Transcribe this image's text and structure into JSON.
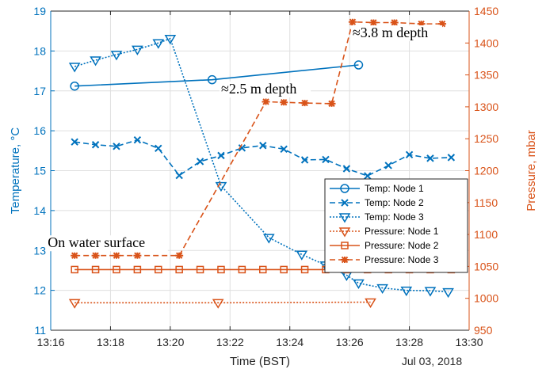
{
  "chart_data": {
    "type": "line",
    "xlabel": "Time (BST)",
    "x_note": "Jul 03, 2018",
    "x_ticks": [
      "13:16",
      "13:18",
      "13:20",
      "13:22",
      "13:24",
      "13:26",
      "13:28",
      "13:30"
    ],
    "xlim_minutes": [
      16,
      30
    ],
    "left_axis": {
      "label": "Temperature,  °C",
      "ylim": [
        11,
        19
      ],
      "ticks": [
        11,
        12,
        13,
        14,
        15,
        16,
        17,
        18,
        19
      ],
      "color": "#0072BD"
    },
    "right_axis": {
      "label": "Pressure, mbar",
      "ylim": [
        950,
        1450
      ],
      "ticks": [
        950,
        1000,
        1050,
        1100,
        1150,
        1200,
        1250,
        1300,
        1350,
        1400,
        1450
      ],
      "color": "#D95319"
    },
    "grid": true,
    "legend_position": "lower-right",
    "series": [
      {
        "name": "Temp: Node 1",
        "axis": "left",
        "color": "#0072BD",
        "line": "solid",
        "marker": "circle",
        "x_time": [
          "13:16:48",
          "13:21:24",
          "13:26:18"
        ],
        "y": [
          17.12,
          17.28,
          17.65
        ]
      },
      {
        "name": "Temp: Node 2",
        "axis": "left",
        "color": "#0072BD",
        "line": "dashed",
        "marker": "x",
        "x_time": [
          "13:16:48",
          "13:17:30",
          "13:18:12",
          "13:18:54",
          "13:19:36",
          "13:20:18",
          "13:21:00",
          "13:21:42",
          "13:22:24",
          "13:23:06",
          "13:23:48",
          "13:24:30",
          "13:25:12",
          "13:25:54",
          "13:26:36",
          "13:27:18",
          "13:28:00",
          "13:28:42",
          "13:29:24"
        ],
        "y": [
          15.72,
          15.65,
          15.61,
          15.77,
          15.56,
          14.88,
          15.23,
          15.38,
          15.57,
          15.63,
          15.54,
          15.27,
          15.28,
          15.05,
          14.87,
          15.13,
          15.4,
          15.31,
          15.33
        ]
      },
      {
        "name": "Temp: Node 3",
        "axis": "left",
        "color": "#0072BD",
        "line": "dotted",
        "marker": "triangle-down",
        "x_time": [
          "13:16:48",
          "13:17:30",
          "13:18:12",
          "13:18:54",
          "13:19:36",
          "13:20:00",
          "13:21:42",
          "13:23:18",
          "13:24:24",
          "13:25:12",
          "13:25:54",
          "13:26:18",
          "13:27:06",
          "13:27:54",
          "13:28:42",
          "13:29:18"
        ],
        "y": [
          17.61,
          17.77,
          17.91,
          18.04,
          18.2,
          18.31,
          14.62,
          13.32,
          12.9,
          12.63,
          12.38,
          12.18,
          12.06,
          12.0,
          11.99,
          11.96
        ]
      },
      {
        "name": "Pressure: Node 1",
        "axis": "right",
        "color": "#D95319",
        "line": "dotted",
        "marker": "triangle-down",
        "x_time": [
          "13:16:48",
          "13:21:36",
          "13:26:42"
        ],
        "y": [
          993,
          993,
          994
        ]
      },
      {
        "name": "Pressure: Node 2",
        "axis": "right",
        "color": "#D95319",
        "line": "solid",
        "marker": "square",
        "x_time": [
          "13:16:48",
          "13:17:30",
          "13:18:12",
          "13:18:54",
          "13:19:36",
          "13:20:18",
          "13:21:00",
          "13:21:42",
          "13:22:24",
          "13:23:06",
          "13:23:48",
          "13:24:30",
          "13:25:12",
          "13:25:54",
          "13:26:36",
          "13:27:18",
          "13:28:00",
          "13:28:42",
          "13:29:24"
        ],
        "y": [
          1045,
          1045,
          1045,
          1045,
          1045,
          1045,
          1045,
          1045,
          1045,
          1045,
          1045,
          1045,
          1045,
          1045,
          1045,
          1045,
          1045,
          1045,
          1045
        ]
      },
      {
        "name": "Pressure: Node 3",
        "axis": "right",
        "color": "#D95319",
        "line": "dashed",
        "marker": "asterisk",
        "x_time": [
          "13:16:48",
          "13:17:30",
          "13:18:12",
          "13:18:54",
          "13:20:18",
          "13:23:12",
          "13:23:48",
          "13:24:30",
          "13:25:24",
          "13:26:06",
          "13:26:48",
          "13:27:30",
          "13:28:24",
          "13:29:06"
        ],
        "y": [
          1067,
          1067,
          1067,
          1067,
          1067,
          1308,
          1307,
          1306,
          1305,
          1433,
          1432,
          1432,
          1430,
          1430
        ]
      }
    ],
    "annotations": [
      {
        "text": "On water surface",
        "x_time": "13:15:54",
        "y_right": 1080,
        "anchor": "start"
      },
      {
        "text": "≈2.5 m depth",
        "x_time": "13:21:42",
        "y_right": 1321,
        "anchor": "start"
      },
      {
        "text": "≈3.8 m depth",
        "x_time": "13:26:06",
        "y_right": 1409,
        "anchor": "start"
      }
    ]
  }
}
